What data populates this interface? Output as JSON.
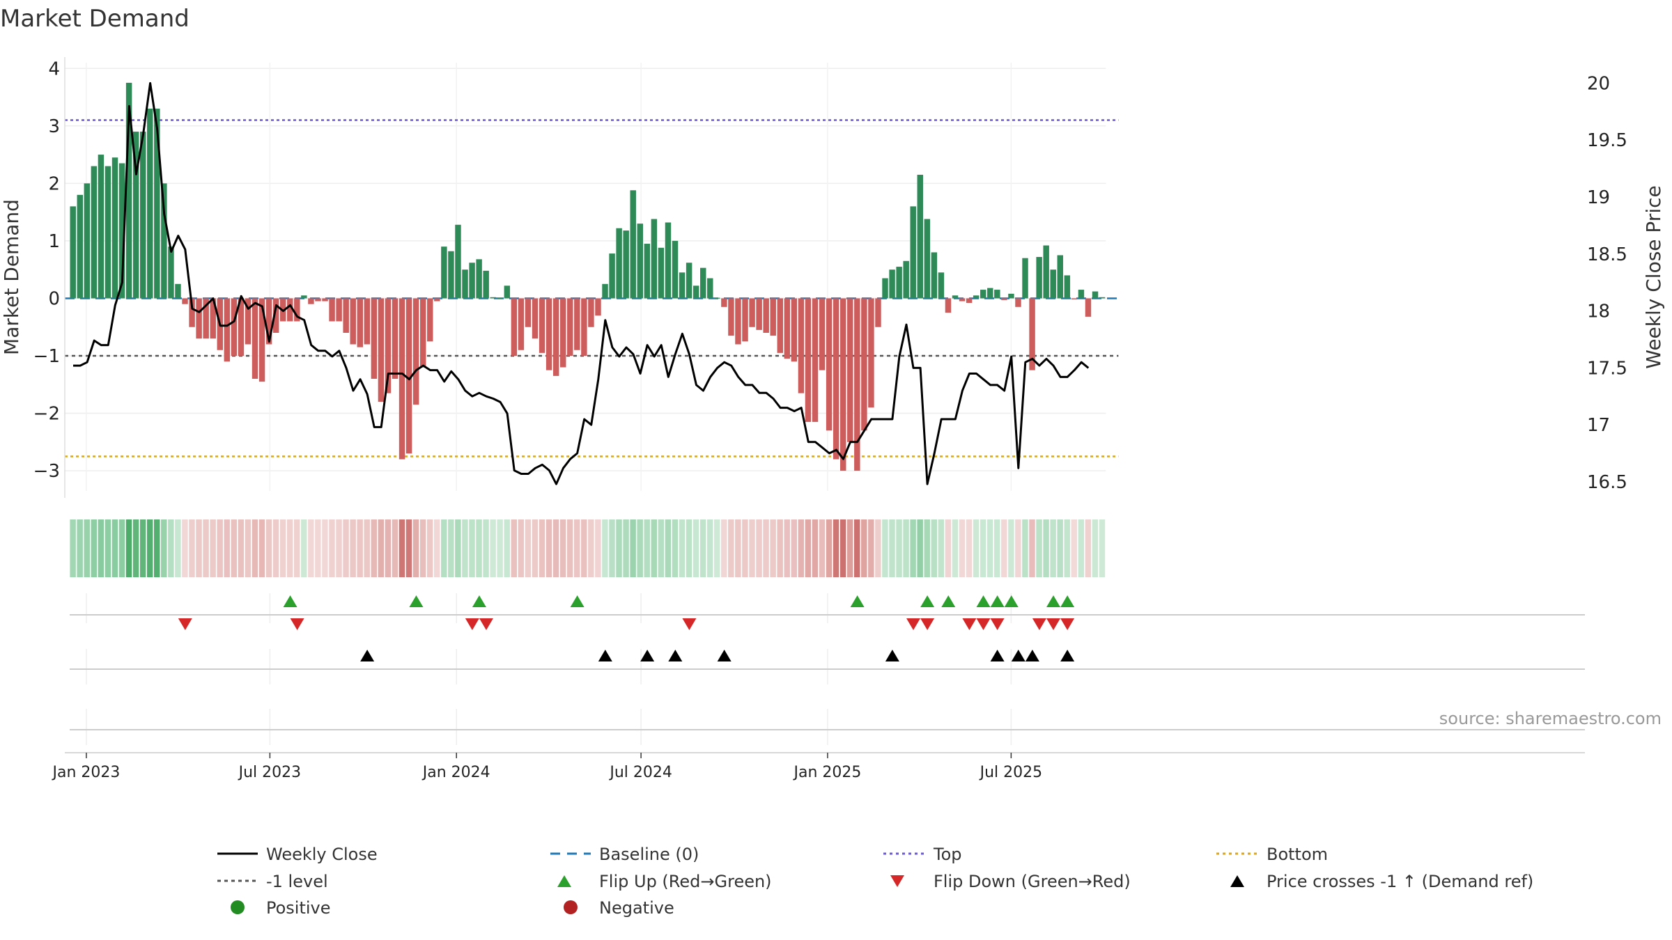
{
  "chart_data": {
    "type": "bar",
    "title": "Market Demand",
    "ylabel": "Market Demand",
    "y2label": "Weekly Close Price",
    "ylim": [
      -3.35,
      4.1
    ],
    "y2lim": [
      16.42,
      20.18
    ],
    "yticks": [
      "−3",
      "−2",
      "−1",
      "0",
      "1",
      "2",
      "3",
      "4"
    ],
    "y2ticks": [
      "16.5",
      "17",
      "17.5",
      "18",
      "18.5",
      "19",
      "19.5",
      "20"
    ],
    "xticks": [
      "Jan 2023",
      "Jul 2023",
      "Jan 2024",
      "Jul 2024",
      "Jan 2025",
      "Jul 2025"
    ],
    "top_level": 3.1,
    "bottom_level": -2.75,
    "ref_level": -1,
    "x_start": "2022-12-19",
    "x_end": "2025-09-29",
    "source": "source: sharemaestro.com",
    "colors": {
      "positive": "#2e8b57",
      "negative": "#cd5c5c",
      "top": "#6a5acd",
      "bottom": "#daa520",
      "ref": "#555555",
      "baseline": "#1f77b4",
      "flip_up": "#2ca02c",
      "flip_down": "#d62728",
      "cross": "#000000",
      "price": "#000000"
    },
    "series": [
      {
        "name": "Market Demand",
        "values": [
          1.6,
          1.8,
          2.0,
          2.3,
          2.5,
          2.3,
          2.45,
          2.35,
          3.75,
          2.9,
          2.9,
          3.3,
          3.3,
          2.0,
          0.9,
          0.25,
          -0.1,
          -0.5,
          -0.7,
          -0.7,
          -0.7,
          -0.9,
          -1.1,
          -1.0,
          -1.0,
          -0.8,
          -1.4,
          -1.45,
          -0.8,
          -0.6,
          -0.4,
          -0.4,
          -0.4,
          0.05,
          -0.1,
          -0.05,
          -0.05,
          -0.4,
          -0.4,
          -0.6,
          -0.8,
          -0.85,
          -0.8,
          -1.4,
          -1.8,
          -1.65,
          -1.4,
          -2.8,
          -2.7,
          -1.85,
          -1.2,
          -0.75,
          -0.05,
          0.9,
          0.82,
          1.28,
          0.5,
          0.62,
          0.68,
          0.48,
          0.02,
          0.01,
          0.22,
          -1.0,
          -0.9,
          -0.5,
          -0.7,
          -0.95,
          -1.25,
          -1.35,
          -1.2,
          -1.0,
          -0.9,
          -1.0,
          -0.5,
          -0.3,
          0.25,
          0.78,
          1.22,
          1.18,
          1.88,
          1.3,
          0.95,
          1.38,
          0.88,
          1.32,
          1.0,
          0.45,
          0.62,
          0.22,
          0.53,
          0.35,
          0.01,
          -0.15,
          -0.65,
          -0.8,
          -0.75,
          -0.5,
          -0.55,
          -0.6,
          -0.65,
          -0.95,
          -1.05,
          -1.1,
          -1.65,
          -2.15,
          -2.15,
          -1.25,
          -2.3,
          -2.8,
          -3.0,
          -2.5,
          -3.0,
          -2.3,
          -1.9,
          -0.5,
          0.35,
          0.5,
          0.55,
          0.65,
          1.6,
          2.15,
          1.38,
          0.8,
          0.45,
          -0.25,
          0.05,
          -0.05,
          -0.08,
          0.05,
          0.15,
          0.18,
          0.15,
          -0.03,
          0.08,
          -0.15,
          0.7,
          -1.25,
          0.72,
          0.92,
          0.5,
          0.75,
          0.4,
          -0.02,
          0.15,
          -0.32,
          0.12,
          0.02
        ]
      },
      {
        "name": "Weekly Close",
        "axis": "right",
        "values": [
          17.52,
          17.52,
          17.55,
          17.74,
          17.7,
          17.7,
          18.05,
          18.25,
          19.8,
          19.2,
          19.55,
          20.0,
          19.6,
          18.85,
          18.52,
          18.66,
          18.54,
          18.02,
          17.99,
          18.05,
          18.11,
          17.87,
          17.87,
          17.91,
          18.13,
          18.02,
          18.07,
          18.04,
          17.73,
          18.05,
          18.0,
          18.05,
          17.95,
          17.92,
          17.7,
          17.65,
          17.65,
          17.6,
          17.65,
          17.5,
          17.3,
          17.4,
          17.27,
          16.98,
          16.98,
          17.45,
          17.45,
          17.45,
          17.4,
          17.48,
          17.52,
          17.48,
          17.48,
          17.38,
          17.47,
          17.4,
          17.3,
          17.25,
          17.28,
          17.25,
          17.23,
          17.2,
          17.1,
          16.6,
          16.57,
          16.57,
          16.62,
          16.65,
          16.6,
          16.48,
          16.62,
          16.7,
          16.75,
          17.05,
          17.0,
          17.4,
          17.92,
          17.68,
          17.6,
          17.68,
          17.62,
          17.45,
          17.7,
          17.6,
          17.7,
          17.42,
          17.62,
          17.8,
          17.62,
          17.35,
          17.3,
          17.42,
          17.5,
          17.55,
          17.52,
          17.42,
          17.35,
          17.35,
          17.28,
          17.28,
          17.23,
          17.15,
          17.15,
          17.12,
          17.15,
          16.85,
          16.85,
          16.8,
          16.75,
          16.78,
          16.7,
          16.85,
          16.85,
          16.95,
          17.05,
          17.05,
          17.05,
          17.05,
          17.6,
          17.88,
          17.5,
          17.5,
          16.48,
          16.75,
          17.05,
          17.05,
          17.05,
          17.3,
          17.45,
          17.45,
          17.4,
          17.35,
          17.35,
          17.3,
          17.6,
          16.62,
          17.55,
          17.58,
          17.52,
          17.58,
          17.52,
          17.42,
          17.42,
          17.48,
          17.55,
          17.5
        ]
      }
    ],
    "flip_up_weeks": [
      31,
      49,
      58,
      72,
      112,
      122,
      125,
      130,
      132,
      134,
      140,
      142
    ],
    "flip_down_weeks": [
      16,
      32,
      57,
      59,
      88,
      120,
      122,
      128,
      130,
      132,
      138,
      140,
      142
    ],
    "price_cross_weeks": [
      42,
      76,
      82,
      86,
      93,
      117,
      132,
      135,
      137,
      142
    ],
    "legend": {
      "weekly_close": "Weekly Close",
      "baseline": "Baseline (0)",
      "top": "Top",
      "bottom": "Bottom",
      "ref": "-1 level",
      "flip_up": "Flip Up (Red→Green)",
      "flip_down": "Flip Down (Green→Red)",
      "cross": "Price crosses -1 ↑ (Demand ref)",
      "positive": "Positive",
      "negative": "Negative"
    }
  }
}
